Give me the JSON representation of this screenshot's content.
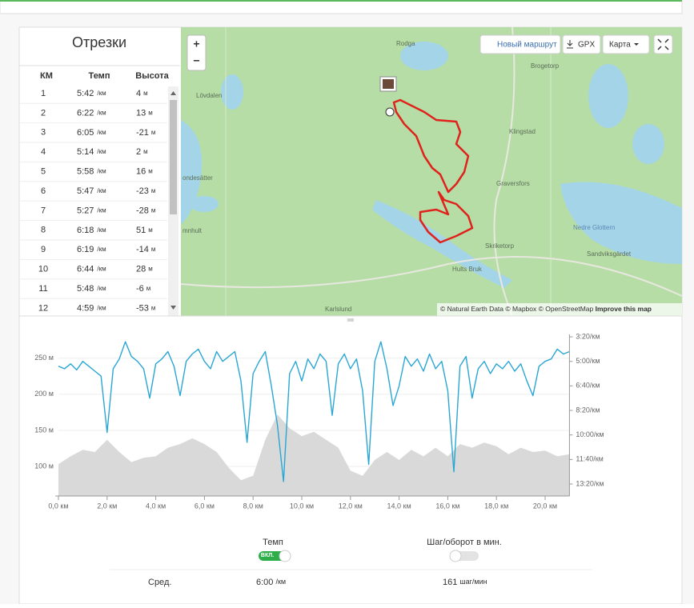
{
  "splits": {
    "title": "Отрезки",
    "headers": [
      "КМ",
      "Темп",
      "Высота"
    ],
    "pace_unit": "/км",
    "elev_unit": "м",
    "rows": [
      {
        "km": 1,
        "pace": "5:42",
        "elev": 4
      },
      {
        "km": 2,
        "pace": "6:22",
        "elev": 13
      },
      {
        "km": 3,
        "pace": "6:05",
        "elev": -21
      },
      {
        "km": 4,
        "pace": "5:14",
        "elev": 2
      },
      {
        "km": 5,
        "pace": "5:58",
        "elev": 16
      },
      {
        "km": 6,
        "pace": "5:47",
        "elev": -23
      },
      {
        "km": 7,
        "pace": "5:27",
        "elev": -28
      },
      {
        "km": 8,
        "pace": "6:18",
        "elev": 51
      },
      {
        "km": 9,
        "pace": "6:19",
        "elev": -14
      },
      {
        "km": 10,
        "pace": "6:44",
        "elev": 28
      },
      {
        "km": 11,
        "pace": "5:48",
        "elev": -6
      },
      {
        "km": 12,
        "pace": "4:59",
        "elev": -53
      }
    ]
  },
  "map": {
    "zoom_in": "+",
    "zoom_out": "−",
    "new_route": "Новый маршрут",
    "gpx": "GPX",
    "layer": "Карта",
    "places": [
      "Rodga",
      "Lövdalen",
      "Brogetorp",
      "Klingstad",
      "ondesätter",
      "Graversfors",
      "mnhult",
      "Nedre Glottern",
      "Skriketorp",
      "Sandviksgärdet",
      "Hults Bruk",
      "Karlslund"
    ],
    "attribution": "© Natural Earth Data © Mapbox © OpenStreetMap",
    "improve": "Improve this map"
  },
  "chart_data": {
    "type": "line",
    "xlim": [
      0,
      21
    ],
    "xticks": [
      {
        "value": 0,
        "label": "0,0 км"
      },
      {
        "value": 2,
        "label": "2,0 км"
      },
      {
        "value": 4,
        "label": "4,0 км"
      },
      {
        "value": 6,
        "label": "6,0 км"
      },
      {
        "value": 8,
        "label": "8,0 км"
      },
      {
        "value": 10,
        "label": "10,0 км"
      },
      {
        "value": 12,
        "label": "12,0 км"
      },
      {
        "value": 14,
        "label": "14,0 км"
      },
      {
        "value": 16,
        "label": "16,0 км"
      },
      {
        "value": 18,
        "label": "18,0 км"
      },
      {
        "value": 20,
        "label": "20,0 км"
      }
    ],
    "ylim": [
      59,
      283
    ],
    "yticks": [
      {
        "value": 100,
        "label": "100 м"
      },
      {
        "value": 150,
        "label": "150 м"
      },
      {
        "value": 200,
        "label": "200 м"
      },
      {
        "value": 250,
        "label": "250 м"
      }
    ],
    "y2lim": [
      190,
      849
    ],
    "y2_reversed": true,
    "y2ticks": [
      {
        "value": 200,
        "label": "3:20/км"
      },
      {
        "value": 300,
        "label": "5:00/км"
      },
      {
        "value": 400,
        "label": "6:40/км"
      },
      {
        "value": 500,
        "label": "8:20/км"
      },
      {
        "value": 600,
        "label": "10:00/км"
      },
      {
        "value": 700,
        "label": "11:40/км"
      },
      {
        "value": 800,
        "label": "13:20/км"
      }
    ],
    "series": [
      {
        "kind": "area",
        "color": "#d9d9d9",
        "x": [
          0,
          0.5,
          1,
          1.5,
          2,
          2.5,
          3,
          3.5,
          4,
          4.5,
          5,
          5.5,
          6,
          6.5,
          7,
          7.5,
          8,
          8.5,
          9,
          9.5,
          10,
          10.5,
          11,
          11.5,
          12,
          12.5,
          13,
          13.5,
          14,
          14.5,
          15,
          15.5,
          16,
          16.5,
          17,
          17.5,
          18,
          18.5,
          19,
          19.5,
          20,
          20.5,
          21
        ],
        "values": [
          103,
          114,
          123,
          120,
          137,
          120,
          106,
          112,
          114,
          126,
          131,
          139,
          131,
          120,
          98,
          81,
          87,
          137,
          172,
          153,
          142,
          148,
          137,
          126,
          94,
          87,
          109,
          120,
          109,
          123,
          114,
          126,
          114,
          131,
          126,
          133,
          128,
          117,
          126,
          120,
          122,
          114,
          117
        ]
      },
      {
        "kind": "line",
        "color": "#2aa6d5",
        "axis": "y2",
        "x": [
          0,
          0.25,
          0.5,
          0.75,
          1,
          1.25,
          1.5,
          1.75,
          2,
          2.25,
          2.5,
          2.75,
          3,
          3.25,
          3.5,
          3.75,
          4,
          4.25,
          4.5,
          4.75,
          5,
          5.25,
          5.5,
          5.75,
          6,
          6.25,
          6.5,
          6.75,
          7,
          7.25,
          7.5,
          7.75,
          8,
          8.25,
          8.5,
          8.75,
          9,
          9.25,
          9.5,
          9.75,
          10,
          10.25,
          10.5,
          10.75,
          11,
          11.25,
          11.5,
          11.75,
          12,
          12.25,
          12.5,
          12.75,
          13,
          13.25,
          13.5,
          13.75,
          14,
          14.25,
          14.5,
          14.75,
          15,
          15.25,
          15.5,
          15.75,
          16,
          16.25,
          16.5,
          16.75,
          17,
          17.25,
          17.5,
          17.75,
          18,
          18.25,
          18.5,
          18.75,
          19,
          19.25,
          19.5,
          19.75,
          20,
          20.25,
          20.5,
          20.75,
          21
        ],
        "values": [
          320,
          330,
          310,
          335,
          300,
          320,
          340,
          360,
          590,
          330,
          290,
          220,
          280,
          300,
          330,
          450,
          310,
          290,
          260,
          320,
          440,
          300,
          270,
          250,
          300,
          330,
          260,
          300,
          280,
          260,
          380,
          630,
          350,
          300,
          260,
          400,
          560,
          790,
          350,
          300,
          380,
          290,
          330,
          270,
          300,
          520,
          310,
          270,
          330,
          290,
          420,
          720,
          300,
          220,
          330,
          480,
          400,
          280,
          320,
          290,
          340,
          270,
          330,
          300,
          420,
          750,
          320,
          280,
          450,
          330,
          300,
          350,
          310,
          330,
          300,
          340,
          310,
          380,
          440,
          320,
          300,
          290,
          250,
          270,
          260
        ]
      }
    ]
  },
  "controls": {
    "pace_label": "Темп",
    "pace_toggle": "ВКЛ.",
    "cadence_label": "Шаг/оборот в мин."
  },
  "summary": {
    "label": "Сред.",
    "pace": "6:00",
    "pace_unit": "/км",
    "cadence": "161",
    "cadence_unit": "шаг/мин"
  }
}
